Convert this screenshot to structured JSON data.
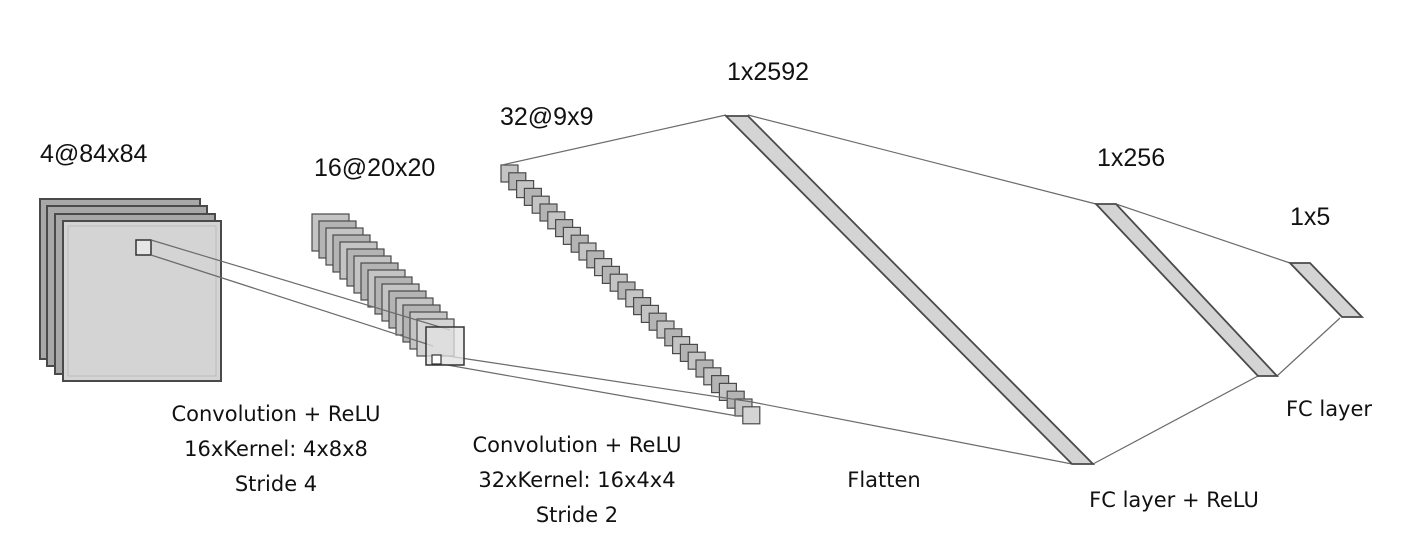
{
  "layers": {
    "input": {
      "shape": "4@84x84"
    },
    "conv1": {
      "shape": "16@20x20"
    },
    "conv2": {
      "shape": "32@9x9"
    },
    "flatten": {
      "shape": "1x2592"
    },
    "fc1": {
      "shape": "1x256"
    },
    "output": {
      "shape": "1x5"
    }
  },
  "operations": {
    "conv1": {
      "line1": "Convolution + ReLU",
      "line2": "16xKernel: 4x8x8",
      "line3": "Stride 4"
    },
    "conv2": {
      "line1": "Convolution + ReLU",
      "line2": "32xKernel: 16x4x4",
      "line3": "Stride 2"
    },
    "flatten": {
      "label": "Flatten"
    },
    "fc1": {
      "label": "FC layer + ReLU"
    },
    "fc2": {
      "label": "FC layer"
    }
  },
  "colors": {
    "map_fill": "#d4d4d4",
    "map_border": "#4a4a4a",
    "stack_dark": "#a8a8a8",
    "connector": "#6b6b6b"
  }
}
